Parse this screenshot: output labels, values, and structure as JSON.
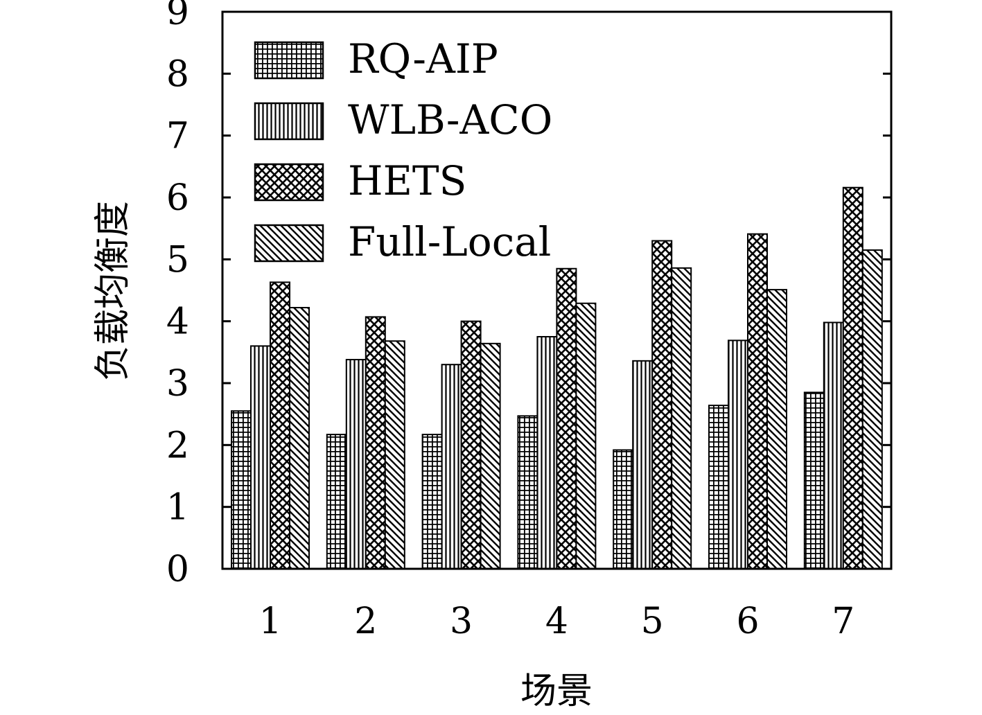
{
  "chart_data": {
    "type": "bar",
    "title": "",
    "xlabel": "场景",
    "ylabel": "负载均衡度",
    "categories": [
      "1",
      "2",
      "3",
      "4",
      "5",
      "6",
      "7"
    ],
    "ylim": [
      0,
      9
    ],
    "yticks": [
      "0",
      "1",
      "2",
      "3",
      "4",
      "5",
      "6",
      "7",
      "8",
      "9"
    ],
    "grid": false,
    "legend_position": "top-left",
    "series": [
      {
        "name": "RQ-AIP",
        "pattern": "grid",
        "values": [
          2.55,
          2.17,
          2.17,
          2.47,
          1.92,
          2.64,
          2.85
        ]
      },
      {
        "name": "WLB-ACO",
        "pattern": "vertical",
        "values": [
          3.6,
          3.38,
          3.3,
          3.75,
          3.36,
          3.69,
          3.98
        ]
      },
      {
        "name": "HETS",
        "pattern": "crosshatch",
        "values": [
          4.63,
          4.07,
          4.0,
          4.85,
          5.3,
          5.41,
          6.16
        ]
      },
      {
        "name": "Full-Local",
        "pattern": "diagonal",
        "values": [
          4.22,
          3.68,
          3.64,
          4.29,
          4.86,
          4.51,
          5.15
        ]
      }
    ]
  }
}
